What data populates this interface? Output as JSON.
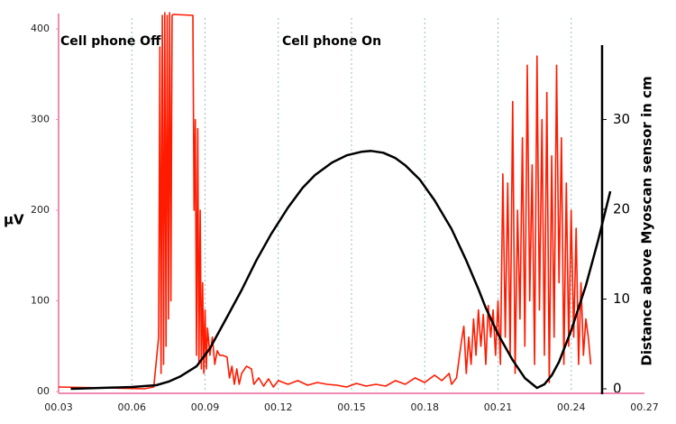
{
  "chart_data": {
    "type": "line",
    "annotations": [
      "Cell phone Off",
      "Cell phone On"
    ],
    "ylabel": "µV",
    "y2label": "Distance above Myoscan sensor in cm",
    "xlim": [
      0.03,
      0.27
    ],
    "xticks": [
      {
        "value": 0.03,
        "label": "00.03"
      },
      {
        "value": 0.06,
        "label": "00.06"
      },
      {
        "value": 0.09,
        "label": "00.09"
      },
      {
        "value": 0.12,
        "label": "00.12"
      },
      {
        "value": 0.15,
        "label": "00.15"
      },
      {
        "value": 0.18,
        "label": "00.18"
      },
      {
        "value": 0.21,
        "label": "00.21"
      },
      {
        "value": 0.24,
        "label": "00.24"
      },
      {
        "value": 0.27,
        "label": "00.27"
      }
    ],
    "ylim": [
      0,
      417
    ],
    "yticks": [
      {
        "value": 0,
        "label": "00"
      },
      100,
      200,
      300,
      400
    ],
    "y2lim": [
      -0.3,
      41.8
    ],
    "y2ticks": [
      0,
      10,
      20,
      30
    ],
    "grid": true,
    "series": [
      {
        "color": "#ff1a00",
        "x": [
          0.03,
          0.05,
          0.065,
          0.069,
          0.071,
          0.0715,
          0.072,
          0.0725,
          0.073,
          0.0735,
          0.074,
          0.0745,
          0.075,
          0.0755,
          0.076,
          0.0765,
          0.077,
          0.085,
          0.0855,
          0.086,
          0.0865,
          0.087,
          0.0875,
          0.088,
          0.0885,
          0.089,
          0.0895,
          0.09,
          0.0905,
          0.091,
          0.092,
          0.093,
          0.094,
          0.095,
          0.096,
          0.097,
          0.099,
          0.1,
          0.101,
          0.102,
          0.103,
          0.104,
          0.105,
          0.107,
          0.109,
          0.11,
          0.112,
          0.114,
          0.116,
          0.118,
          0.12,
          0.124,
          0.128,
          0.132,
          0.136,
          0.14,
          0.144,
          0.148,
          0.152,
          0.156,
          0.16,
          0.164,
          0.168,
          0.172,
          0.176,
          0.18,
          0.184,
          0.187,
          0.19,
          0.191,
          0.193,
          0.195,
          0.196,
          0.197,
          0.198,
          0.199,
          0.2,
          0.201,
          0.202,
          0.203,
          0.204,
          0.205,
          0.206,
          0.207,
          0.208,
          0.209,
          0.21,
          0.211,
          0.212,
          0.213,
          0.214,
          0.215,
          0.216,
          0.217,
          0.218,
          0.219,
          0.22,
          0.221,
          0.222,
          0.223,
          0.224,
          0.225,
          0.226,
          0.227,
          0.228,
          0.229,
          0.23,
          0.231,
          0.232,
          0.233,
          0.234,
          0.235,
          0.236,
          0.237,
          0.238,
          0.239,
          0.24,
          0.241,
          0.242,
          0.243,
          0.244,
          0.245,
          0.246,
          0.247,
          0.248
        ],
        "values": [
          5,
          4,
          3,
          5,
          60,
          380,
          20,
          415,
          30,
          418,
          50,
          415,
          80,
          418,
          100,
          415,
          416,
          415,
          200,
          300,
          40,
          290,
          30,
          200,
          25,
          120,
          20,
          90,
          25,
          70,
          40,
          60,
          30,
          45,
          40,
          40,
          38,
          15,
          28,
          8,
          25,
          8,
          20,
          28,
          25,
          8,
          15,
          6,
          14,
          5,
          12,
          8,
          12,
          7,
          10,
          8,
          7,
          5,
          9,
          6,
          8,
          6,
          12,
          8,
          15,
          10,
          18,
          12,
          20,
          8,
          15,
          55,
          72,
          20,
          60,
          30,
          80,
          40,
          90,
          50,
          85,
          30,
          95,
          60,
          90,
          40,
          100,
          30,
          240,
          60,
          230,
          40,
          320,
          20,
          200,
          80,
          280,
          50,
          360,
          100,
          250,
          30,
          370,
          90,
          300,
          40,
          330,
          10,
          260,
          60,
          360,
          120,
          280,
          30,
          230,
          50,
          200,
          60,
          180,
          30,
          120,
          40,
          80,
          60,
          30
        ]
      },
      {
        "color": "#000000",
        "axis": "y2",
        "x": [
          0.035,
          0.06,
          0.07,
          0.075,
          0.08,
          0.0865,
          0.092,
          0.098,
          0.105,
          0.111,
          0.117,
          0.124,
          0.13,
          0.135,
          0.142,
          0.148,
          0.154,
          0.158,
          0.163,
          0.168,
          0.172,
          0.178,
          0.184,
          0.191,
          0.197,
          0.202,
          0.205,
          0.21,
          0.216,
          0.221,
          0.226,
          0.229,
          0.232,
          0.235,
          0.24,
          0.246,
          0.251,
          0.256
        ],
        "values": [
          0,
          0.2,
          0.4,
          0.8,
          1.4,
          2.5,
          4.5,
          7.5,
          11,
          14.3,
          17.2,
          20.2,
          22.4,
          23.8,
          25.2,
          26,
          26.4,
          26.5,
          26.3,
          25.7,
          24.9,
          23.3,
          21,
          17.8,
          14.3,
          11.1,
          9,
          6.1,
          3.2,
          1.2,
          0.1,
          0.5,
          1.5,
          3,
          6.5,
          11.5,
          16.5,
          22
        ]
      }
    ]
  }
}
